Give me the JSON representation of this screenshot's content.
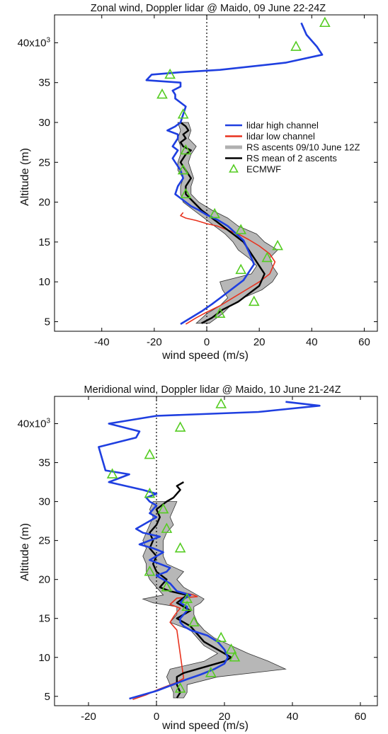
{
  "chart_data": [
    {
      "type": "line",
      "title": "Zonal wind, Doppler lidar @ Maido, 09 June 22-24Z",
      "xlabel": "wind speed (m/s)",
      "ylabel": "Altitude (m)",
      "xlim": [
        -58,
        65
      ],
      "ylim": [
        3800,
        43500
      ],
      "xticks": [
        -40,
        -20,
        0,
        20,
        40,
        60
      ],
      "xtick_labels": [
        "-40",
        "-20",
        "0",
        "20",
        "40",
        "60"
      ],
      "yticks": [
        5000,
        10000,
        15000,
        20000,
        25000,
        30000,
        35000,
        40000
      ],
      "ytick_labels": [
        "5",
        "10",
        "15",
        "20",
        "25",
        "30",
        "35",
        "40x10³"
      ],
      "legend": {
        "placement": "top-right",
        "entries": [
          {
            "name": "lidar high channel",
            "color": "#1f3fe0"
          },
          {
            "name": "lidar low channel",
            "color": "#e8321e"
          },
          {
            "name": "RS ascents 09/10 June 12Z",
            "color": "#b0b0b0"
          },
          {
            "name": "RS mean of 2 ascents",
            "color": "#000000"
          },
          {
            "name": "ECMWF",
            "color": "#55cc22"
          }
        ]
      },
      "series": [
        {
          "name": "lidar high channel",
          "x": [
            -10,
            -6,
            -2,
            2,
            6,
            10,
            14,
            16,
            18,
            17,
            16,
            15,
            14,
            12,
            10,
            8,
            4,
            0,
            -3,
            -6,
            -8,
            -10,
            -12,
            -11,
            -9,
            -10,
            -12,
            -13,
            -12,
            -11,
            -13,
            -11,
            -11,
            -15,
            -12,
            -10,
            -9,
            -8,
            -12,
            -12,
            -13,
            -10,
            -10,
            -23,
            -21,
            -10,
            5,
            30,
            44,
            42,
            38,
            36
          ],
          "y": [
            4700,
            5500,
            6300,
            7200,
            8200,
            9200,
            10200,
            11200,
            12200,
            13000,
            13800,
            14500,
            15200,
            15800,
            16400,
            17000,
            17800,
            18400,
            19000,
            19500,
            20000,
            20500,
            21000,
            22000,
            23000,
            24000,
            25000,
            25500,
            26000,
            26500,
            27000,
            28000,
            28500,
            29000,
            29500,
            30000,
            31000,
            32000,
            33000,
            33500,
            34000,
            34500,
            35000,
            35300,
            36000,
            36300,
            36600,
            37500,
            38500,
            39500,
            41000,
            42500
          ]
        },
        {
          "name": "lidar low channel",
          "x": [
            -8,
            -4,
            0,
            5,
            10,
            15,
            20,
            24,
            26,
            24,
            20,
            16,
            12,
            8,
            4,
            0,
            -4,
            -8,
            -10,
            -9
          ],
          "y": [
            4700,
            5500,
            6200,
            7000,
            8000,
            9000,
            10000,
            11000,
            12500,
            13500,
            14500,
            15300,
            16000,
            16500,
            17000,
            17300,
            17700,
            18000,
            18300,
            18700
          ]
        },
        {
          "name": "RS mean of 2 ascents",
          "x": [
            -2,
            2,
            6,
            12,
            16,
            20,
            22,
            20,
            18,
            16,
            14,
            10,
            6,
            2,
            -2,
            -5,
            -8,
            -8,
            -6,
            -8,
            -10,
            -8,
            -6,
            -9,
            -10,
            -8,
            -9,
            -7,
            -8,
            -10
          ],
          "y": [
            4800,
            5500,
            6500,
            7500,
            8500,
            9500,
            11000,
            12000,
            13000,
            14000,
            15000,
            16000,
            17000,
            18000,
            19000,
            20000,
            21000,
            22000,
            23000,
            24000,
            25000,
            26000,
            26500,
            27000,
            27500,
            28000,
            28500,
            29000,
            29500,
            30000
          ]
        },
        {
          "name": "ECMWF",
          "marker": "triangle",
          "x": [
            5,
            18,
            13,
            23,
            27,
            13,
            3,
            -8,
            -9,
            -8,
            -9,
            -17,
            -14,
            34,
            45
          ],
          "y": [
            6000,
            7500,
            11500,
            13000,
            14500,
            16500,
            18500,
            21000,
            24000,
            26500,
            31000,
            33500,
            36000,
            39500,
            42500
          ]
        }
      ],
      "rs_envelope": {
        "name": "RS ascents 09/10 June 12Z",
        "y": [
          4800,
          6000,
          7000,
          8000,
          9000,
          10000,
          11000,
          12000,
          13000,
          14000,
          15000,
          16000,
          17000,
          18000,
          19000,
          20000,
          21000,
          22000,
          23000,
          24000,
          25000,
          26000,
          27000,
          28000,
          29000,
          30000
        ],
        "x_min": [
          -4,
          0,
          5,
          8,
          6,
          5,
          17,
          19,
          16,
          12,
          10,
          7,
          3,
          -1,
          -5,
          -9,
          -10,
          -10,
          -9,
          -11,
          -11,
          -10,
          -10,
          -11,
          -10,
          -11
        ],
        "x_max": [
          1,
          6,
          9,
          14,
          21,
          25,
          27,
          25,
          24,
          27,
          22,
          19,
          12,
          8,
          2,
          -3,
          -6,
          -6,
          -5,
          -6,
          -7,
          -6,
          -4,
          -7,
          -6,
          -7
        ]
      }
    },
    {
      "type": "line",
      "title": "Meridional wind, Doppler lidar @ Maido, 10 June 21-24Z",
      "xlabel": "wind speed (m/s)",
      "ylabel": "Altitude (m)",
      "xlim": [
        -30,
        65
      ],
      "ylim": [
        3800,
        43500
      ],
      "xticks": [
        -20,
        0,
        20,
        40,
        60
      ],
      "xtick_labels": [
        "-20",
        "0",
        "20",
        "40",
        "60"
      ],
      "yticks": [
        5000,
        10000,
        15000,
        20000,
        25000,
        30000,
        35000,
        40000
      ],
      "ytick_labels": [
        "5",
        "10",
        "15",
        "20",
        "25",
        "30",
        "35",
        "40x10³"
      ],
      "series": [
        {
          "name": "lidar high channel",
          "x": [
            -8,
            -4,
            0,
            3,
            6,
            9,
            13,
            17,
            20,
            21,
            20,
            18,
            15,
            10,
            8,
            7,
            7,
            8,
            9,
            9,
            7,
            8,
            10,
            6,
            5,
            4,
            2,
            0,
            3,
            4,
            1,
            -2,
            0,
            2,
            -1,
            -5,
            -2,
            1,
            -4,
            -6,
            -4,
            -2,
            0,
            -2,
            -1,
            0,
            -2,
            -3,
            0,
            -4,
            -14,
            -8,
            -15,
            -16,
            -17,
            -6,
            -5,
            -14,
            0,
            30,
            48,
            38
          ],
          "y": [
            4700,
            5200,
            5700,
            6200,
            6700,
            7200,
            7800,
            8500,
            9200,
            10000,
            11000,
            12000,
            12800,
            13500,
            14000,
            14500,
            15000,
            15500,
            16000,
            16500,
            17000,
            17500,
            18000,
            18500,
            19000,
            19500,
            20000,
            20500,
            21000,
            21500,
            22000,
            22500,
            23000,
            23500,
            24000,
            24500,
            25000,
            25500,
            26000,
            26500,
            27000,
            27500,
            28000,
            28500,
            29000,
            29500,
            30000,
            30500,
            31000,
            31500,
            32500,
            33500,
            34000,
            35500,
            37000,
            38200,
            39000,
            40000,
            41000,
            41500,
            42300,
            42800
          ]
        },
        {
          "name": "lidar low channel",
          "x": [
            -7,
            -3,
            0,
            3,
            6,
            8,
            6,
            4,
            5,
            6,
            7,
            4,
            5,
            6,
            12,
            11,
            8
          ],
          "y": [
            4600,
            5200,
            5800,
            6300,
            6800,
            7300,
            13500,
            14500,
            15200,
            15800,
            16300,
            16800,
            17200,
            17600,
            17800,
            18000,
            18300
          ]
        },
        {
          "name": "RS mean of 2 ascents",
          "x": [
            6,
            7,
            6,
            6,
            8,
            12,
            16,
            20,
            22,
            18,
            14,
            12,
            10,
            6,
            10,
            6,
            9,
            4,
            1,
            3,
            0,
            -1,
            0,
            -2,
            -1,
            -2,
            0,
            1,
            0,
            3,
            5,
            6,
            7,
            6,
            8
          ],
          "y": [
            4800,
            5500,
            6500,
            7500,
            8000,
            8500,
            9000,
            9500,
            10000,
            11000,
            12000,
            13000,
            14000,
            15000,
            16000,
            17000,
            18000,
            18500,
            19000,
            20000,
            21000,
            22000,
            23000,
            24000,
            25000,
            26000,
            27000,
            28000,
            29000,
            30000,
            30500,
            31000,
            31500,
            32000,
            32500
          ]
        },
        {
          "name": "ECMWF",
          "marker": "triangle",
          "x": [
            7,
            16,
            23,
            22,
            19,
            11,
            9,
            9,
            3,
            -2,
            7,
            3,
            2,
            -2,
            -13,
            -2,
            7,
            19
          ],
          "y": [
            6000,
            8000,
            10000,
            11000,
            12500,
            14500,
            16500,
            17500,
            19000,
            21000,
            24000,
            26500,
            29000,
            31000,
            33500,
            36000,
            39500,
            42500
          ]
        }
      ],
      "rs_envelope": {
        "name": "RS ascents 09/10 June 12Z",
        "y": [
          4800,
          5500,
          6500,
          7500,
          8500,
          9500,
          10500,
          11500,
          12500,
          13500,
          14500,
          15500,
          16500,
          17000,
          17500,
          18000,
          19000,
          20000,
          21000,
          22000,
          23000,
          24000,
          25000,
          26000,
          27000,
          28000,
          29000,
          30000
        ],
        "x_min": [
          5,
          5,
          4,
          3,
          4,
          14,
          18,
          14,
          12,
          10,
          4,
          6,
          6,
          -1,
          -4,
          2,
          0,
          -2,
          -3,
          -3,
          -4,
          -3,
          -4,
          -3,
          -2,
          -1,
          -2,
          -1
        ],
        "x_max": [
          8,
          9,
          9,
          18,
          38,
          33,
          27,
          22,
          17,
          14,
          12,
          11,
          11,
          13,
          14,
          12,
          8,
          6,
          8,
          3,
          2,
          2,
          2,
          3,
          5,
          4,
          5,
          6
        ]
      }
    }
  ]
}
